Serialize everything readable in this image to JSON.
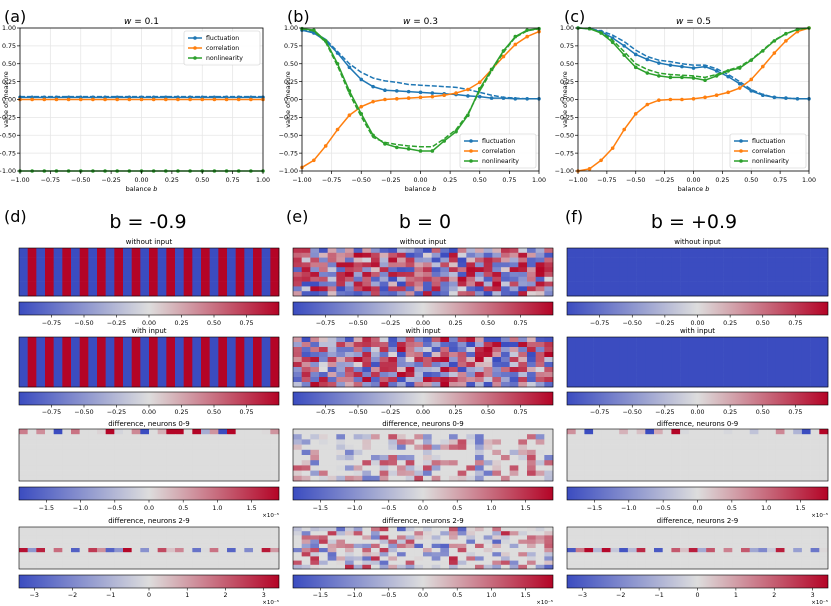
{
  "colors": {
    "fluctuation": "#1f77b4",
    "correlation": "#ff7f0e",
    "nonlinearity": "#2ca02c",
    "cmap_low": "#3b4cc0",
    "cmap_mid": "#dddddd",
    "cmap_high": "#b40426"
  },
  "chart_data": [
    {
      "type": "line",
      "panel": "a",
      "panel_label": "(a)",
      "title": "w = 0.1",
      "title_prefix": "w",
      "title_value": "= 0.1",
      "xlabel": "balance b",
      "xlabel_word": "balance",
      "xlabel_var": "b",
      "ylabel": "value of measure",
      "xlim": [
        -1,
        1
      ],
      "ylim": [
        -1,
        1
      ],
      "xticks": [
        -1,
        -0.75,
        -0.5,
        -0.25,
        0,
        0.25,
        0.5,
        0.75,
        1
      ],
      "xtick_labels": [
        "−1.00",
        "−0.75",
        "−0.50",
        "−0.25",
        "0.00",
        "0.25",
        "0.50",
        "0.75",
        "1.00"
      ],
      "yticks": [
        1,
        0.75,
        0.5,
        0.25,
        0,
        -0.25,
        -0.5,
        -0.75,
        -1
      ],
      "ytick_labels": [
        "1.00",
        "0.75",
        "0.50",
        "0.25",
        "0.00",
        "−0.25",
        "−0.50",
        "−0.75",
        "−1.00"
      ],
      "legend": [
        "fluctuation",
        "correlation",
        "nonlinearity"
      ],
      "x": [
        -1,
        -0.9,
        -0.8,
        -0.7,
        -0.6,
        -0.5,
        -0.4,
        -0.3,
        -0.2,
        -0.1,
        0,
        0.1,
        0.2,
        0.3,
        0.4,
        0.5,
        0.6,
        0.7,
        0.8,
        0.9,
        1
      ],
      "series": [
        {
          "name": "fluctuation",
          "color": "#1f77b4",
          "values": [
            0.03,
            0.03,
            0.03,
            0.03,
            0.03,
            0.03,
            0.03,
            0.03,
            0.03,
            0.03,
            0.03,
            0.03,
            0.03,
            0.03,
            0.03,
            0.03,
            0.03,
            0.03,
            0.03,
            0.03,
            0.03
          ],
          "values2": [
            0.04,
            0.04,
            0.04,
            0.04,
            0.04,
            0.04,
            0.04,
            0.04,
            0.04,
            0.04,
            0.04,
            0.04,
            0.04,
            0.04,
            0.04,
            0.04,
            0.04,
            0.04,
            0.04,
            0.04,
            0.04
          ]
        },
        {
          "name": "correlation",
          "color": "#ff7f0e",
          "values": [
            0.0,
            0.0,
            0.0,
            0.0,
            0.0,
            0.0,
            0.0,
            0.0,
            0.0,
            0.0,
            0.0,
            0.0,
            0.0,
            0.0,
            0.0,
            0.0,
            0.0,
            0.0,
            0.0,
            0.0,
            0.0
          ]
        },
        {
          "name": "nonlinearity",
          "color": "#2ca02c",
          "values": [
            -1,
            -1,
            -1,
            -1,
            -1,
            -1,
            -1,
            -1,
            -1,
            -1,
            -1,
            -1,
            -1,
            -1,
            -1,
            -1,
            -1,
            -1,
            -1,
            -1,
            -1
          ]
        }
      ]
    },
    {
      "type": "line",
      "panel": "b",
      "panel_label": "(b)",
      "title": "w = 0.3",
      "title_prefix": "w",
      "title_value": "= 0.3",
      "xlabel": "balance b",
      "xlabel_word": "balance",
      "xlabel_var": "b",
      "ylabel": "value of measure",
      "xlim": [
        -1,
        1
      ],
      "ylim": [
        -1,
        1
      ],
      "xticks": [
        -1,
        -0.75,
        -0.5,
        -0.25,
        0,
        0.25,
        0.5,
        0.75,
        1
      ],
      "xtick_labels": [
        "−1.00",
        "−0.75",
        "−0.50",
        "−0.25",
        "0.00",
        "0.25",
        "0.50",
        "0.75",
        "1.00"
      ],
      "yticks": [
        1,
        0.75,
        0.5,
        0.25,
        0,
        -0.25,
        -0.5,
        -0.75,
        -1
      ],
      "ytick_labels": [
        "1.00",
        "0.75",
        "0.50",
        "0.25",
        "0.00",
        "−0.25",
        "−0.50",
        "−0.75",
        "−1.00"
      ],
      "legend": [
        "fluctuation",
        "correlation",
        "nonlinearity"
      ],
      "x": [
        -1,
        -0.9,
        -0.8,
        -0.7,
        -0.6,
        -0.5,
        -0.4,
        -0.3,
        -0.2,
        -0.1,
        0,
        0.1,
        0.2,
        0.3,
        0.4,
        0.5,
        0.6,
        0.7,
        0.8,
        0.9,
        1
      ],
      "series": [
        {
          "name": "fluctuation",
          "color": "#1f77b4",
          "values": [
            0.97,
            0.93,
            0.82,
            0.65,
            0.45,
            0.28,
            0.18,
            0.13,
            0.12,
            0.11,
            0.1,
            0.09,
            0.08,
            0.07,
            0.05,
            0.04,
            0.02,
            0.02,
            0.01,
            0.01,
            0.01
          ],
          "values2": [
            0.97,
            0.94,
            0.84,
            0.67,
            0.5,
            0.38,
            0.3,
            0.26,
            0.24,
            0.21,
            0.2,
            0.19,
            0.18,
            0.17,
            0.14,
            0.1,
            0.06,
            0.03,
            0.02,
            0.01,
            0.01
          ]
        },
        {
          "name": "correlation",
          "color": "#ff7f0e",
          "values": [
            -0.95,
            -0.85,
            -0.65,
            -0.42,
            -0.22,
            -0.1,
            -0.03,
            0.0,
            0.01,
            0.02,
            0.03,
            0.04,
            0.06,
            0.09,
            0.14,
            0.24,
            0.42,
            0.6,
            0.77,
            0.88,
            0.95
          ]
        },
        {
          "name": "nonlinearity",
          "color": "#2ca02c",
          "values": [
            0.99,
            0.97,
            0.82,
            0.5,
            0.12,
            -0.2,
            -0.5,
            -0.62,
            -0.67,
            -0.69,
            -0.72,
            -0.72,
            -0.58,
            -0.45,
            -0.22,
            0.15,
            0.42,
            0.68,
            0.88,
            0.97,
            0.99
          ],
          "values2": [
            0.99,
            0.96,
            0.8,
            0.47,
            0.08,
            -0.24,
            -0.53,
            -0.6,
            -0.63,
            -0.65,
            -0.66,
            -0.66,
            -0.55,
            -0.42,
            -0.2,
            0.12,
            0.4,
            0.66,
            0.87,
            0.96,
            0.99
          ]
        }
      ]
    },
    {
      "type": "line",
      "panel": "c",
      "panel_label": "(c)",
      "title": "w = 0.5",
      "title_prefix": "w",
      "title_value": "= 0.5",
      "xlabel": "balance b",
      "xlabel_word": "balance",
      "xlabel_var": "b",
      "ylabel": "value of measure",
      "xlim": [
        -1,
        1
      ],
      "ylim": [
        -1,
        1
      ],
      "xticks": [
        -1,
        -0.75,
        -0.5,
        -0.25,
        0,
        0.25,
        0.5,
        0.75,
        1
      ],
      "xtick_labels": [
        "−1.00",
        "−0.75",
        "−0.50",
        "−0.25",
        "0.00",
        "0.25",
        "0.50",
        "0.75",
        "1.00"
      ],
      "yticks": [
        1,
        0.75,
        0.5,
        0.25,
        0,
        -0.25,
        -0.5,
        -0.75,
        -1
      ],
      "ytick_labels": [
        "1.00",
        "0.75",
        "0.50",
        "0.25",
        "0.00",
        "−0.25",
        "−0.50",
        "−0.75",
        "−1.00"
      ],
      "legend": [
        "fluctuation",
        "correlation",
        "nonlinearity"
      ],
      "x": [
        -1,
        -0.9,
        -0.8,
        -0.7,
        -0.6,
        -0.5,
        -0.4,
        -0.3,
        -0.2,
        -0.1,
        0,
        0.1,
        0.2,
        0.3,
        0.4,
        0.5,
        0.6,
        0.7,
        0.8,
        0.9,
        1
      ],
      "series": [
        {
          "name": "fluctuation",
          "color": "#1f77b4",
          "values": [
            1.0,
            0.99,
            0.95,
            0.86,
            0.75,
            0.63,
            0.56,
            0.51,
            0.48,
            0.46,
            0.44,
            0.46,
            0.4,
            0.32,
            0.22,
            0.12,
            0.06,
            0.03,
            0.02,
            0.01,
            0.01
          ],
          "values2": [
            1.0,
            0.99,
            0.96,
            0.9,
            0.81,
            0.69,
            0.6,
            0.55,
            0.53,
            0.5,
            0.48,
            0.48,
            0.43,
            0.35,
            0.25,
            0.14,
            0.07,
            0.03,
            0.02,
            0.01,
            0.01
          ]
        },
        {
          "name": "correlation",
          "color": "#ff7f0e",
          "values": [
            -1.0,
            -0.97,
            -0.85,
            -0.68,
            -0.42,
            -0.2,
            -0.07,
            -0.01,
            0.0,
            0.0,
            0.01,
            0.03,
            0.06,
            0.1,
            0.16,
            0.28,
            0.46,
            0.65,
            0.82,
            0.95,
            1.0
          ]
        },
        {
          "name": "nonlinearity",
          "color": "#2ca02c",
          "values": [
            1.0,
            0.99,
            0.93,
            0.8,
            0.62,
            0.45,
            0.37,
            0.33,
            0.31,
            0.31,
            0.3,
            0.27,
            0.33,
            0.4,
            0.44,
            0.55,
            0.68,
            0.82,
            0.92,
            0.98,
            1.0
          ],
          "values2": [
            1.0,
            0.99,
            0.94,
            0.83,
            0.67,
            0.5,
            0.42,
            0.37,
            0.35,
            0.34,
            0.33,
            0.31,
            0.35,
            0.41,
            0.46,
            0.56,
            0.69,
            0.83,
            0.92,
            0.98,
            1.0
          ]
        }
      ]
    },
    {
      "type": "heatmap",
      "panel": "d",
      "panel_label": "(d)",
      "title": "b = -0.9",
      "subplots": [
        {
          "title": "without input",
          "pattern": "stripes",
          "colorbar_ticks": [
            "−0.75",
            "−0.50",
            "−0.25",
            "0.00",
            "0.25",
            "0.50",
            "0.75"
          ],
          "colorbar_tick_values": [
            -0.75,
            -0.5,
            -0.25,
            0,
            0.25,
            0.5,
            0.75
          ],
          "range": [
            -1,
            1
          ],
          "scale": ""
        },
        {
          "title": "with input",
          "pattern": "stripes",
          "colorbar_ticks": [
            "−0.75",
            "−0.50",
            "−0.25",
            "0.00",
            "0.25",
            "0.50",
            "0.75"
          ],
          "colorbar_tick_values": [
            -0.75,
            -0.5,
            -0.25,
            0,
            0.25,
            0.5,
            0.75
          ],
          "range": [
            -1,
            1
          ],
          "scale": ""
        },
        {
          "title": "difference, neurons 0-9",
          "pattern": "toprow",
          "colorbar_ticks": [
            "−1.5",
            "−1.0",
            "−0.5",
            "0.0",
            "0.5",
            "1.0",
            "1.5"
          ],
          "colorbar_tick_values": [
            -1.5,
            -1,
            -0.5,
            0,
            0.5,
            1,
            1.5
          ],
          "range": [
            -1.9,
            1.9
          ],
          "scale": "×10⁻⁵"
        },
        {
          "title": "difference, neurons 2-9",
          "pattern": "midrow",
          "colorbar_ticks": [
            "−3",
            "−2",
            "−1",
            "0",
            "1",
            "2",
            "3"
          ],
          "colorbar_tick_values": [
            -3,
            -2,
            -1,
            0,
            1,
            2,
            3
          ],
          "range": [
            -3.4,
            3.4
          ],
          "scale": "×10⁻⁵"
        }
      ]
    },
    {
      "type": "heatmap",
      "panel": "e",
      "panel_label": "(e)",
      "title": "b = 0",
      "subplots": [
        {
          "title": "without input",
          "pattern": "random",
          "colorbar_ticks": [
            "−0.75",
            "−0.50",
            "−0.25",
            "0.00",
            "0.25",
            "0.50",
            "0.75"
          ],
          "colorbar_tick_values": [
            -0.75,
            -0.5,
            -0.25,
            0,
            0.25,
            0.5,
            0.75
          ],
          "range": [
            -1,
            1
          ],
          "scale": ""
        },
        {
          "title": "with input",
          "pattern": "random2",
          "colorbar_ticks": [
            "−0.75",
            "−0.50",
            "−0.25",
            "0.00",
            "0.25",
            "0.50",
            "0.75"
          ],
          "colorbar_tick_values": [
            -0.75,
            -0.5,
            -0.25,
            0,
            0.25,
            0.5,
            0.75
          ],
          "range": [
            -1,
            1
          ],
          "scale": ""
        },
        {
          "title": "difference, neurons 0-9",
          "pattern": "sparse",
          "colorbar_ticks": [
            "−1.5",
            "−1.0",
            "−0.5",
            "0.0",
            "0.5",
            "1.0",
            "1.5"
          ],
          "colorbar_tick_values": [
            -1.5,
            -1,
            -0.5,
            0,
            0.5,
            1,
            1.5
          ],
          "range": [
            -1.9,
            1.9
          ],
          "scale": ""
        },
        {
          "title": "difference, neurons 2-9",
          "pattern": "sparse2",
          "colorbar_ticks": [
            "−1.5",
            "−1.0",
            "−0.5",
            "0.0",
            "0.5",
            "1.0",
            "1.5"
          ],
          "colorbar_tick_values": [
            -1.5,
            -1,
            -0.5,
            0,
            0.5,
            1,
            1.5
          ],
          "range": [
            -1.9,
            1.9
          ],
          "scale": "×10⁻⁵"
        }
      ]
    },
    {
      "type": "heatmap",
      "panel": "f",
      "panel_label": "(f)",
      "title": "b = +0.9",
      "subplots": [
        {
          "title": "without input",
          "pattern": "uniform",
          "colorbar_ticks": [
            "−0.75",
            "−0.50",
            "−0.25",
            "0.00",
            "0.25",
            "0.50",
            "0.75"
          ],
          "colorbar_tick_values": [
            -0.75,
            -0.5,
            -0.25,
            0,
            0.25,
            0.5,
            0.75
          ],
          "range": [
            -1,
            1
          ],
          "scale": ""
        },
        {
          "title": "with input",
          "pattern": "uniform",
          "colorbar_ticks": [
            "−0.75",
            "−0.50",
            "−0.25",
            "0.00",
            "0.25",
            "0.50",
            "0.75"
          ],
          "colorbar_tick_values": [
            -0.75,
            -0.5,
            -0.25,
            0,
            0.25,
            0.5,
            0.75
          ],
          "range": [
            -1,
            1
          ],
          "scale": ""
        },
        {
          "title": "difference, neurons 0-9",
          "pattern": "toprow",
          "colorbar_ticks": [
            "−1.5",
            "−1.0",
            "−0.5",
            "0.0",
            "0.5",
            "1.0",
            "1.5"
          ],
          "colorbar_tick_values": [
            -1.5,
            -1,
            -0.5,
            0,
            0.5,
            1,
            1.5
          ],
          "range": [
            -1.9,
            1.9
          ],
          "scale": "×10⁻⁵"
        },
        {
          "title": "difference, neurons 2-9",
          "pattern": "midrow",
          "colorbar_ticks": [
            "−3",
            "−2",
            "−1",
            "0",
            "1",
            "2",
            "3"
          ],
          "colorbar_tick_values": [
            -3,
            -2,
            -1,
            0,
            1,
            2,
            3
          ],
          "range": [
            -3.4,
            3.4
          ],
          "scale": "×10⁻⁵"
        }
      ]
    }
  ]
}
